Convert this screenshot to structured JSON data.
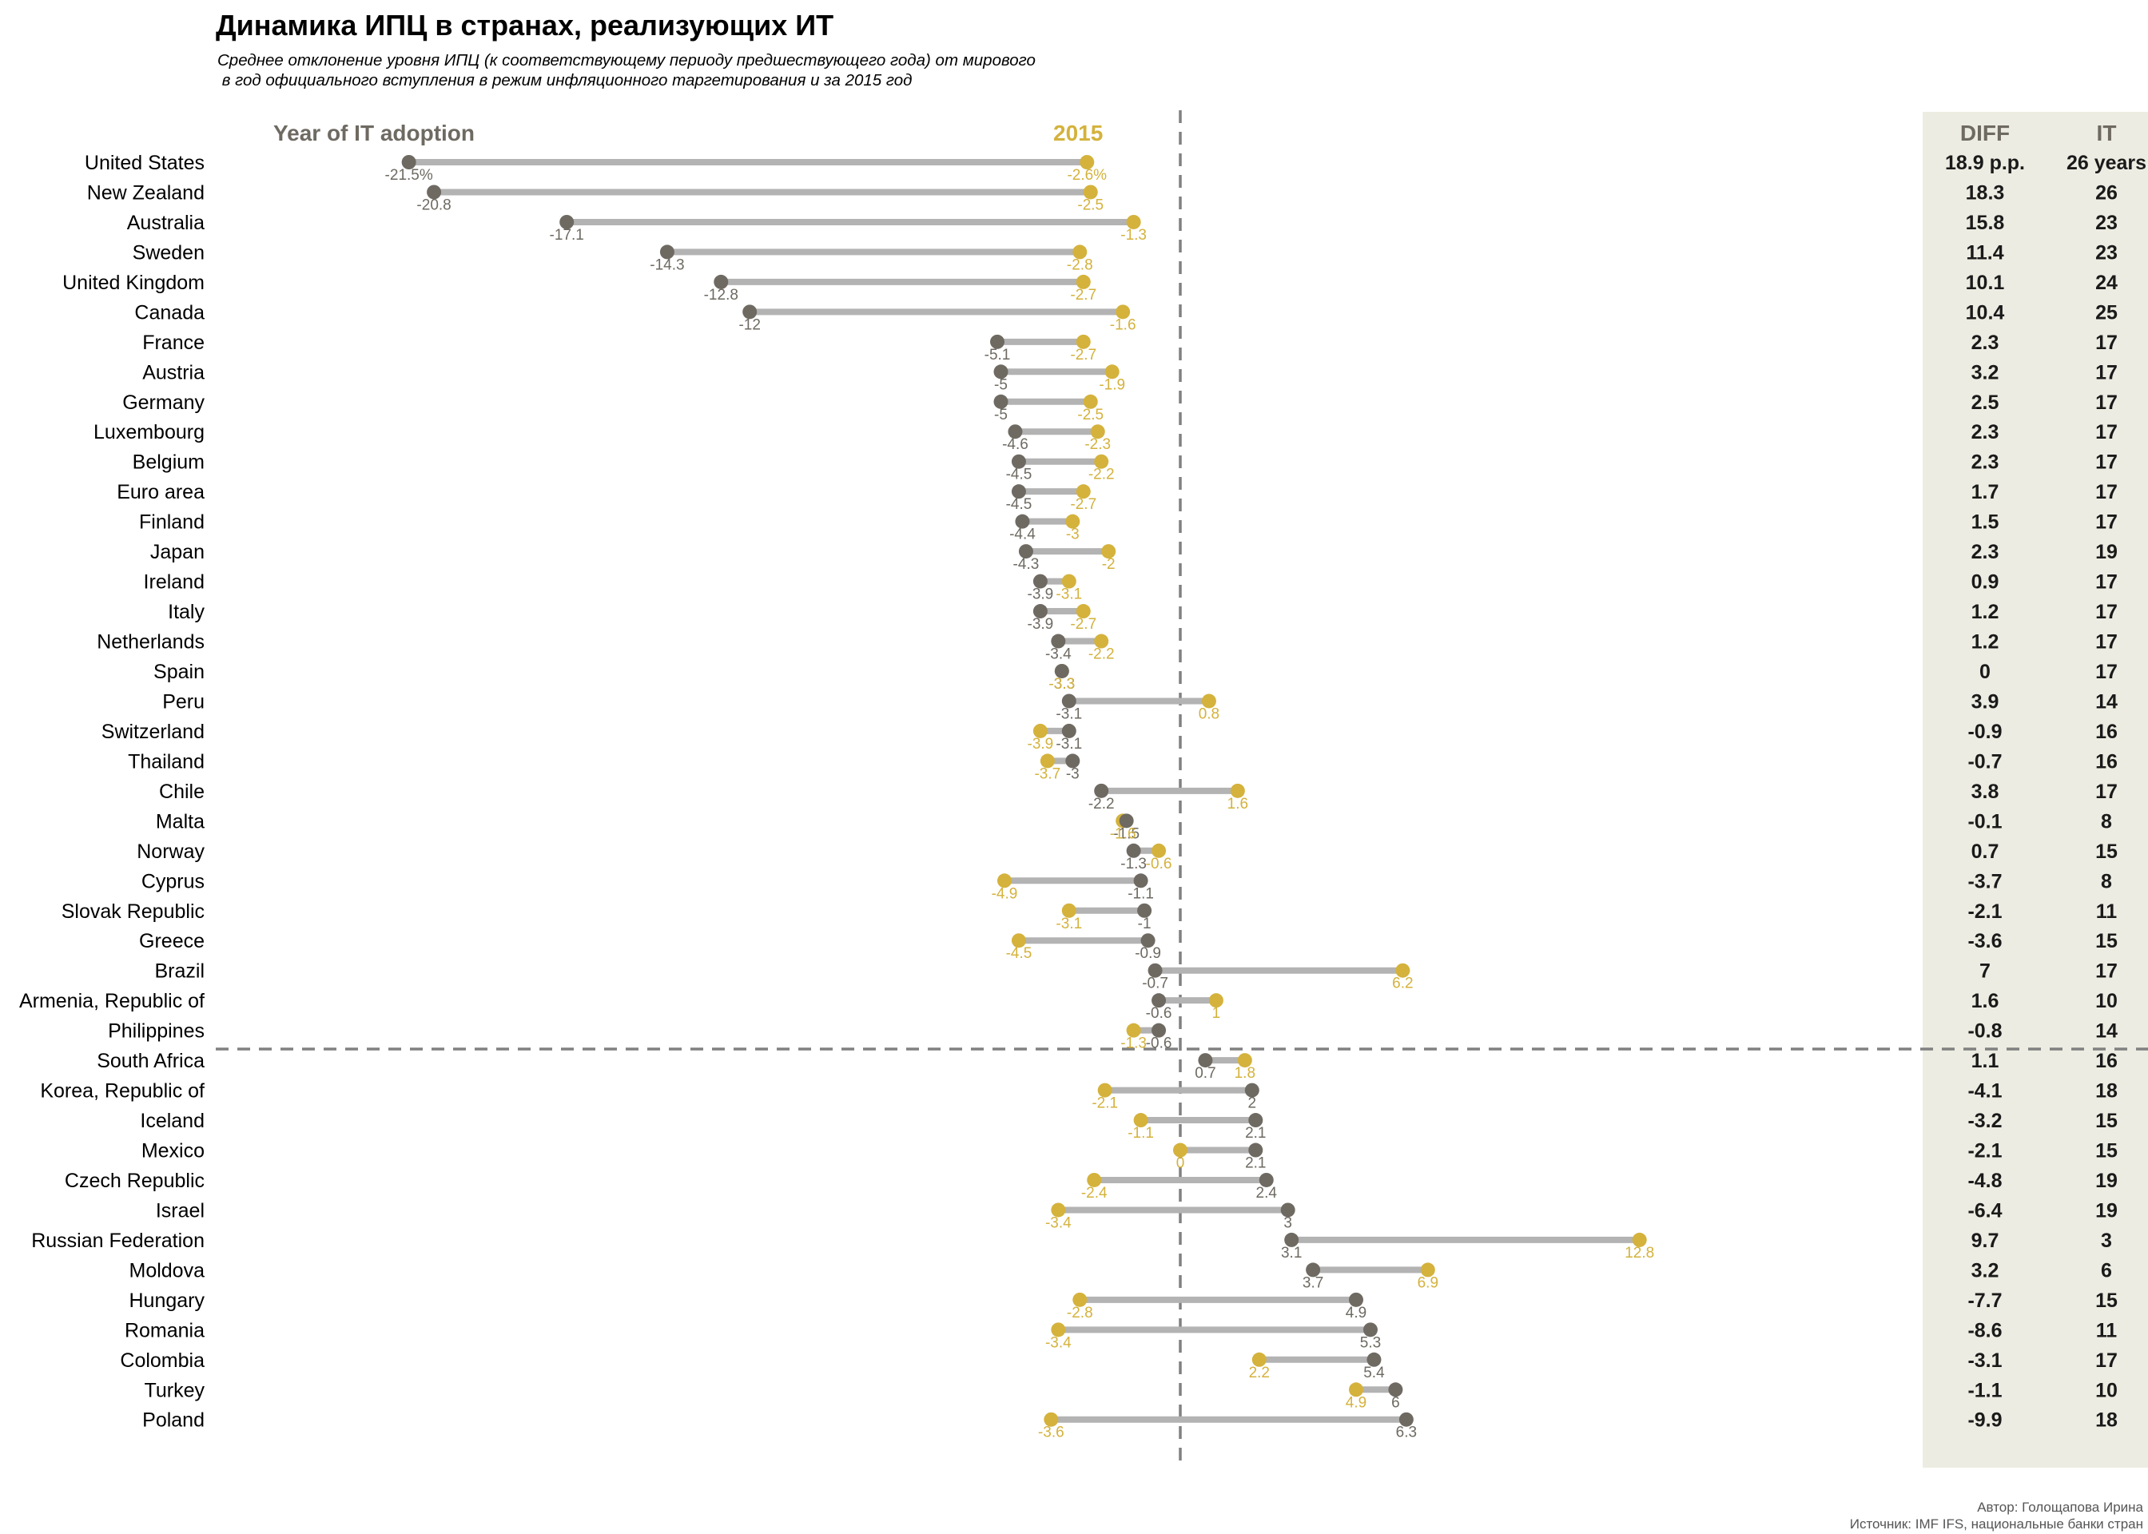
{
  "title": "Динамика ИПЦ в странах, реализующих ИТ",
  "subtitle_line1": "Среднее отклонение уровня ИПЦ (к соответствующему периоду предшествующего года) от мирового",
  "subtitle_line2": " в год официального вступления в режим инфляционного таргетирования и за 2015 год",
  "legend": {
    "adoption_label": "Year of IT adoption",
    "current_label": "2015"
  },
  "table_headers": {
    "diff": "DIFF",
    "it": "IT"
  },
  "footer": {
    "author": "Автор: Голощапова Ирина",
    "source": "Источник: IMF IFS, национальные банки стран"
  },
  "colors": {
    "adoption": "#6e6a62",
    "current": "#d4b23c",
    "connector": "#b3b3b3",
    "panel": "#edece2",
    "reference": "#808080"
  },
  "chart_data": {
    "type": "dumbbell",
    "x_reference": 0,
    "xlim": [
      -27,
      27
    ],
    "separator_after_index": 30,
    "rows": [
      {
        "country": "United States",
        "it_year": -21.5,
        "y2015": -2.6,
        "it_label": "-21.5%",
        "y2015_label": "-2.6%",
        "diff": "18.9 p.p.",
        "years": "26 years"
      },
      {
        "country": "New Zealand",
        "it_year": -20.8,
        "y2015": -2.5,
        "it_label": "-20.8",
        "y2015_label": "-2.5",
        "diff": "18.3",
        "years": "26"
      },
      {
        "country": "Australia",
        "it_year": -17.1,
        "y2015": -1.3,
        "it_label": "-17.1",
        "y2015_label": "-1.3",
        "diff": "15.8",
        "years": "23"
      },
      {
        "country": "Sweden",
        "it_year": -14.3,
        "y2015": -2.8,
        "it_label": "-14.3",
        "y2015_label": "-2.8",
        "diff": "11.4",
        "years": "23"
      },
      {
        "country": "United Kingdom",
        "it_year": -12.8,
        "y2015": -2.7,
        "it_label": "-12.8",
        "y2015_label": "-2.7",
        "diff": "10.1",
        "years": "24"
      },
      {
        "country": "Canada",
        "it_year": -12,
        "y2015": -1.6,
        "it_label": "-12",
        "y2015_label": "-1.6",
        "diff": "10.4",
        "years": "25"
      },
      {
        "country": "France",
        "it_year": -5.1,
        "y2015": -2.7,
        "it_label": "-5.1",
        "y2015_label": "-2.7",
        "diff": "2.3",
        "years": "17"
      },
      {
        "country": "Austria",
        "it_year": -5,
        "y2015": -1.9,
        "it_label": "-5",
        "y2015_label": "-1.9",
        "diff": "3.2",
        "years": "17"
      },
      {
        "country": "Germany",
        "it_year": -5,
        "y2015": -2.5,
        "it_label": "-5",
        "y2015_label": "-2.5",
        "diff": "2.5",
        "years": "17"
      },
      {
        "country": "Luxembourg",
        "it_year": -4.6,
        "y2015": -2.3,
        "it_label": "-4.6",
        "y2015_label": "-2.3",
        "diff": "2.3",
        "years": "17"
      },
      {
        "country": "Belgium",
        "it_year": -4.5,
        "y2015": -2.2,
        "it_label": "-4.5",
        "y2015_label": "-2.2",
        "diff": "2.3",
        "years": "17"
      },
      {
        "country": "Euro area",
        "it_year": -4.5,
        "y2015": -2.7,
        "it_label": "-4.5",
        "y2015_label": "-2.7",
        "diff": "1.7",
        "years": "17"
      },
      {
        "country": "Finland",
        "it_year": -4.4,
        "y2015": -3,
        "it_label": "-4.4",
        "y2015_label": "-3",
        "diff": "1.5",
        "years": "17"
      },
      {
        "country": "Japan",
        "it_year": -4.3,
        "y2015": -2,
        "it_label": "-4.3",
        "y2015_label": "-2",
        "diff": "2.3",
        "years": "19"
      },
      {
        "country": "Ireland",
        "it_year": -3.9,
        "y2015": -3.1,
        "it_label": "-3.9",
        "y2015_label": "-3.1",
        "diff": "0.9",
        "years": "17"
      },
      {
        "country": "Italy",
        "it_year": -3.9,
        "y2015": -2.7,
        "it_label": "-3.9",
        "y2015_label": "-2.7",
        "diff": "1.2",
        "years": "17"
      },
      {
        "country": "Netherlands",
        "it_year": -3.4,
        "y2015": -2.2,
        "it_label": "-3.4",
        "y2015_label": "-2.2",
        "diff": "1.2",
        "years": "17"
      },
      {
        "country": "Spain",
        "it_year": -3.3,
        "y2015": -3.3,
        "it_label": "-3.3",
        "y2015_label": "-3.3",
        "diff": "0",
        "years": "17"
      },
      {
        "country": "Peru",
        "it_year": -3.1,
        "y2015": 0.8,
        "it_label": "-3.1",
        "y2015_label": "0.8",
        "diff": "3.9",
        "years": "14"
      },
      {
        "country": "Switzerland",
        "it_year": -3.1,
        "y2015": -3.9,
        "it_label": "-3.1",
        "y2015_label": "-3.9",
        "diff": "-0.9",
        "years": "16"
      },
      {
        "country": "Thailand",
        "it_year": -3,
        "y2015": -3.7,
        "it_label": "-3",
        "y2015_label": "-3.7",
        "diff": "-0.7",
        "years": "16"
      },
      {
        "country": "Chile",
        "it_year": -2.2,
        "y2015": 1.6,
        "it_label": "-2.2",
        "y2015_label": "1.6",
        "diff": "3.8",
        "years": "17"
      },
      {
        "country": "Malta",
        "it_year": -1.5,
        "y2015": -1.6,
        "it_label": "-1.5",
        "y2015_label": "-1.6",
        "diff": "-0.1",
        "years": "8"
      },
      {
        "country": "Norway",
        "it_year": -1.3,
        "y2015": -0.6,
        "it_label": "-1.3",
        "y2015_label": "-0.6",
        "diff": "0.7",
        "years": "15"
      },
      {
        "country": "Cyprus",
        "it_year": -1.1,
        "y2015": -4.9,
        "it_label": "-1.1",
        "y2015_label": "-4.9",
        "diff": "-3.7",
        "years": "8"
      },
      {
        "country": "Slovak Republic",
        "it_year": -1,
        "y2015": -3.1,
        "it_label": "-1",
        "y2015_label": "-3.1",
        "diff": "-2.1",
        "years": "11"
      },
      {
        "country": "Greece",
        "it_year": -0.9,
        "y2015": -4.5,
        "it_label": "-0.9",
        "y2015_label": "-4.5",
        "diff": "-3.6",
        "years": "15"
      },
      {
        "country": "Brazil",
        "it_year": -0.7,
        "y2015": 6.2,
        "it_label": "-0.7",
        "y2015_label": "6.2",
        "diff": "7",
        "years": "17"
      },
      {
        "country": "Armenia, Republic of",
        "it_year": -0.6,
        "y2015": 1,
        "it_label": "-0.6",
        "y2015_label": "1",
        "diff": "1.6",
        "years": "10"
      },
      {
        "country": "Philippines",
        "it_year": -0.6,
        "y2015": -1.3,
        "it_label": "-0.6",
        "y2015_label": "-1.3",
        "diff": "-0.8",
        "years": "14"
      },
      {
        "country": "South Africa",
        "it_year": 0.7,
        "y2015": 1.8,
        "it_label": "0.7",
        "y2015_label": "1.8",
        "diff": "1.1",
        "years": "16"
      },
      {
        "country": "Korea, Republic of",
        "it_year": 2,
        "y2015": -2.1,
        "it_label": "2",
        "y2015_label": "-2.1",
        "diff": "-4.1",
        "years": "18"
      },
      {
        "country": "Iceland",
        "it_year": 2.1,
        "y2015": -1.1,
        "it_label": "2.1",
        "y2015_label": "-1.1",
        "diff": "-3.2",
        "years": "15"
      },
      {
        "country": "Mexico",
        "it_year": 2.1,
        "y2015": 0,
        "it_label": "2.1",
        "y2015_label": "0",
        "diff": "-2.1",
        "years": "15"
      },
      {
        "country": "Czech Republic",
        "it_year": 2.4,
        "y2015": -2.4,
        "it_label": "2.4",
        "y2015_label": "-2.4",
        "diff": "-4.8",
        "years": "19"
      },
      {
        "country": "Israel",
        "it_year": 3,
        "y2015": -3.4,
        "it_label": "3",
        "y2015_label": "-3.4",
        "diff": "-6.4",
        "years": "19"
      },
      {
        "country": "Russian Federation",
        "it_year": 3.1,
        "y2015": 12.8,
        "it_label": "3.1",
        "y2015_label": "12.8",
        "diff": "9.7",
        "years": "3"
      },
      {
        "country": "Moldova",
        "it_year": 3.7,
        "y2015": 6.9,
        "it_label": "3.7",
        "y2015_label": "6.9",
        "diff": "3.2",
        "years": "6"
      },
      {
        "country": "Hungary",
        "it_year": 4.9,
        "y2015": -2.8,
        "it_label": "4.9",
        "y2015_label": "-2.8",
        "diff": "-7.7",
        "years": "15"
      },
      {
        "country": "Romania",
        "it_year": 5.3,
        "y2015": -3.4,
        "it_label": "5.3",
        "y2015_label": "-3.4",
        "diff": "-8.6",
        "years": "11"
      },
      {
        "country": "Colombia",
        "it_year": 5.4,
        "y2015": 2.2,
        "it_label": "5.4",
        "y2015_label": "2.2",
        "diff": "-3.1",
        "years": "17"
      },
      {
        "country": "Turkey",
        "it_year": 6,
        "y2015": 4.9,
        "it_label": "6",
        "y2015_label": "4.9",
        "diff": "-1.1",
        "years": "10"
      },
      {
        "country": "Poland",
        "it_year": 6.3,
        "y2015": -3.6,
        "it_label": "6.3",
        "y2015_label": "-3.6",
        "diff": "-9.9",
        "years": "18"
      }
    ]
  }
}
